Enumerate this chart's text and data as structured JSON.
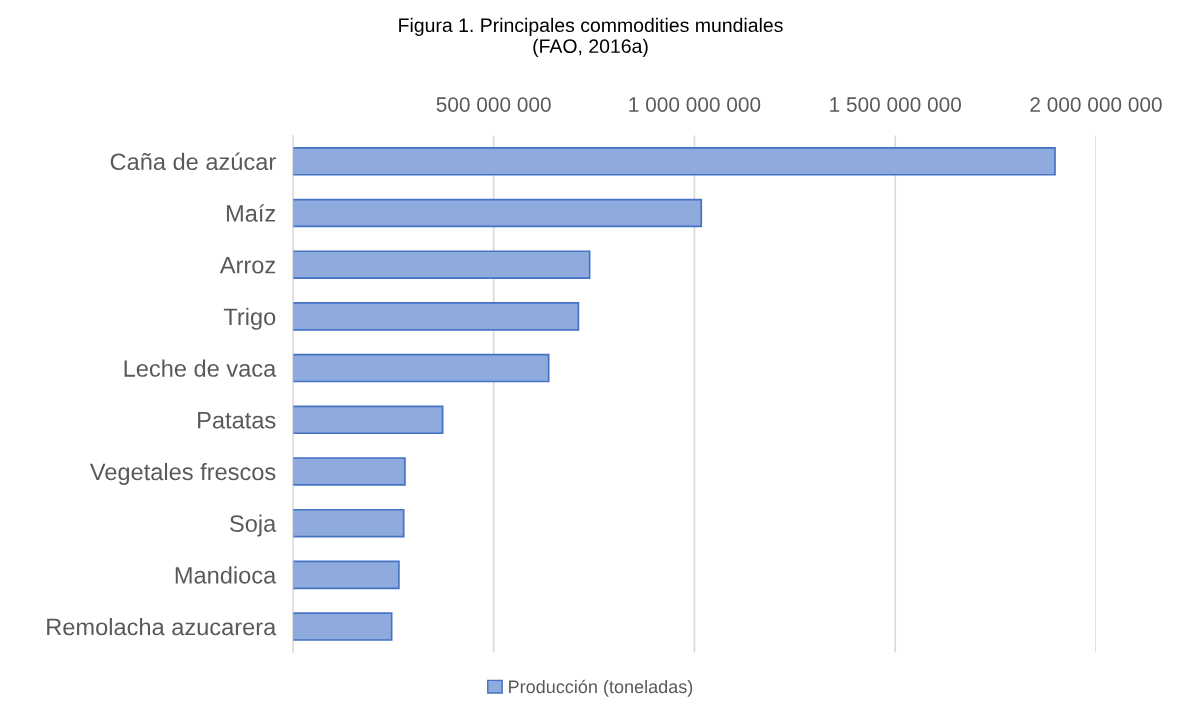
{
  "chart_data": {
    "type": "bar",
    "orientation": "horizontal",
    "title": "Figura 1. Principales commodities mundiales\n(FAO, 2016a)",
    "categories": [
      "Caña de azúcar",
      "Maíz",
      "Arroz",
      "Trigo",
      "Leche de vaca",
      "Patatas",
      "Vegetales frescos",
      "Soja",
      "Mandioca",
      "Remolacha azucarera"
    ],
    "series": [
      {
        "name": "Producción (toneladas)",
        "color": "#8faadc",
        "values": [
          1898000000,
          1017000000,
          739000000,
          711000000,
          637000000,
          373000000,
          279000000,
          276000000,
          264000000,
          246000000
        ]
      }
    ],
    "xlim": [
      0,
      2000000000
    ],
    "xticks": [
      {
        "value": 0,
        "label": null
      },
      {
        "value": 500000000,
        "label": "500 000 000"
      },
      {
        "value": 1000000000,
        "label": "1 000 000 000"
      },
      {
        "value": 1500000000,
        "label": "1 500 000 000"
      },
      {
        "value": 2000000000,
        "label": "2 000 000 000"
      }
    ],
    "grid": "x",
    "legend": "bottom"
  }
}
